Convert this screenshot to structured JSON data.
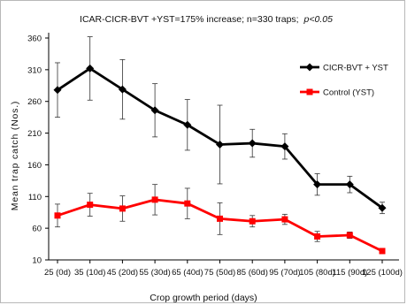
{
  "chart_data": {
    "type": "line",
    "title": "ICAR-CICR-BVT +YST=175% increase; n=330 traps;",
    "title_suffix": "p<0.05",
    "xlabel": "Crop growth period (days)",
    "ylabel": "Mean trap catch (Nos.)",
    "ylim": [
      10,
      360
    ],
    "yticks": [
      10,
      60,
      110,
      160,
      210,
      260,
      310,
      360
    ],
    "categories": [
      "25 (0d)",
      "35 (10d)",
      "45 (20d)",
      "55 (30d)",
      "65 (40d)",
      "75 (50d)",
      "85 (60d)",
      "95 (70d)",
      "105 (80d)",
      "115 (90d)",
      "125 (100d)"
    ],
    "grid": false,
    "legend_position": "right",
    "series": [
      {
        "name": "CICR-BVT + YST",
        "color": "#000000",
        "marker": "diamond",
        "values": [
          278,
          312,
          279,
          246,
          223,
          192,
          194,
          189,
          129,
          129,
          92
        ],
        "error": [
          43,
          50,
          47,
          42,
          40,
          62,
          22,
          20,
          17,
          13,
          9
        ]
      },
      {
        "name": "Control (YST)",
        "color": "#ff0000",
        "marker": "square",
        "values": [
          80,
          97,
          91,
          105,
          99,
          75,
          71,
          74,
          47,
          49,
          24
        ],
        "error": [
          18,
          18,
          20,
          24,
          24,
          25,
          9,
          8,
          8,
          5,
          4
        ]
      }
    ]
  }
}
